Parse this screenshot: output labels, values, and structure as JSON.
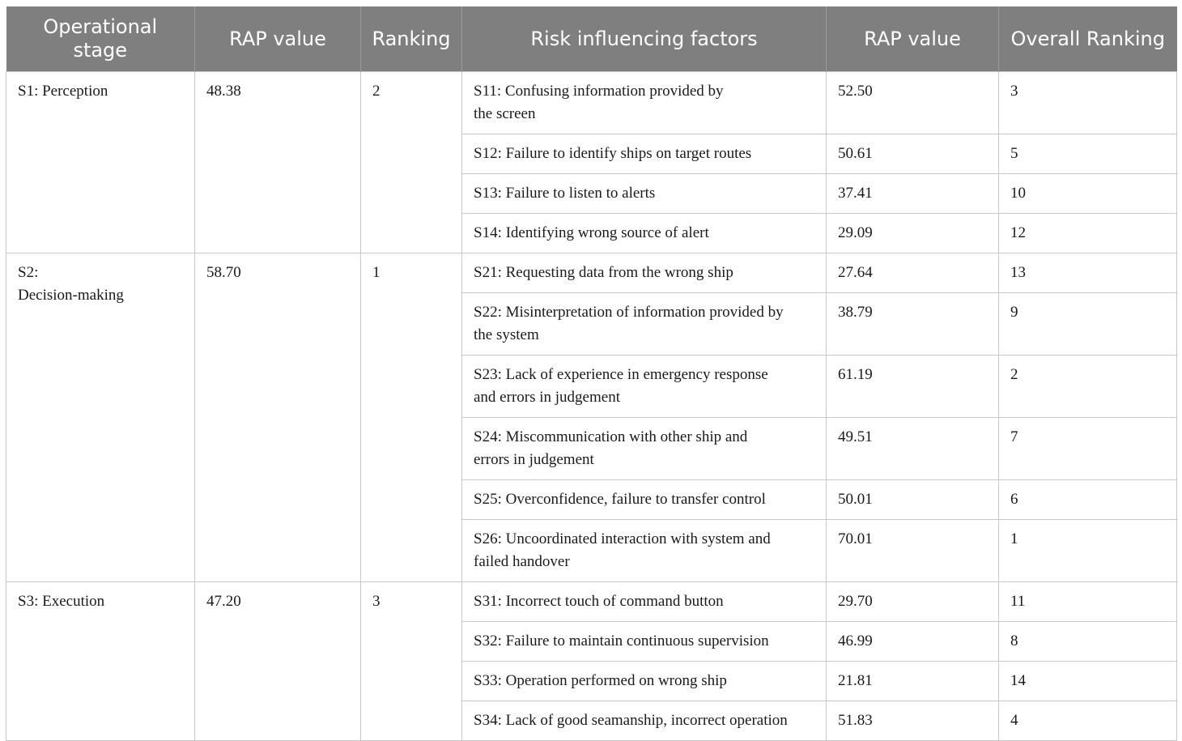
{
  "headers": [
    "Operational stage",
    "RAP value",
    "Ranking",
    "Risk influencing factors",
    "RAP value",
    "Overall Ranking"
  ],
  "header_lines": {
    "stage_line1": "Operational",
    "stage_line2": "stage"
  },
  "stages": [
    {
      "stage_line1": "S1: Perception",
      "stage_line2": "",
      "rap": "48.38",
      "ranking": "2",
      "factors": [
        {
          "line1": "S11: Confusing information provided by",
          "line2": "the screen",
          "rap": "52.50",
          "overall": "3"
        },
        {
          "line1": "S12: Failure to identify ships on target routes",
          "line2": "",
          "rap": "50.61",
          "overall": "5"
        },
        {
          "line1": "S13: Failure to listen to alerts",
          "line2": "",
          "rap": "37.41",
          "overall": "10"
        },
        {
          "line1": "S14: Identifying wrong source of alert",
          "line2": "",
          "rap": "29.09",
          "overall": "12"
        }
      ]
    },
    {
      "stage_line1": "S2:",
      "stage_line2": "Decision-making",
      "rap": "58.70",
      "ranking": "1",
      "factors": [
        {
          "line1": "S21: Requesting data from the wrong ship",
          "line2": "",
          "rap": "27.64",
          "overall": "13"
        },
        {
          "line1": "S22: Misinterpretation of information provided by",
          "line2": "the system",
          "rap": "38.79",
          "overall": "9"
        },
        {
          "line1": "S23: Lack of experience in emergency response",
          "line2": "and errors in judgement",
          "rap": "61.19",
          "overall": "2"
        },
        {
          "line1": "S24: Miscommunication with other ship and",
          "line2": "errors in judgement",
          "rap": "49.51",
          "overall": "7"
        },
        {
          "line1": "S25: Overconfidence, failure to transfer control",
          "line2": "",
          "rap": "50.01",
          "overall": "6"
        },
        {
          "line1": "S26: Uncoordinated interaction with system and",
          "line2": "failed handover",
          "rap": "70.01",
          "overall": "1"
        }
      ]
    },
    {
      "stage_line1": "S3: Execution",
      "stage_line2": "",
      "rap": "47.20",
      "ranking": "3",
      "factors": [
        {
          "line1": "S31: Incorrect touch of command button",
          "line2": "",
          "rap": "29.70",
          "overall": "11"
        },
        {
          "line1": "S32: Failure to maintain continuous supervision",
          "line2": "",
          "rap": "46.99",
          "overall": "8"
        },
        {
          "line1": "S33: Operation performed on wrong ship",
          "line2": "",
          "rap": "21.81",
          "overall": "14"
        },
        {
          "line1": "S34: Lack of good seamanship, incorrect operation",
          "line2": "",
          "rap": "51.83",
          "overall": "4"
        }
      ]
    }
  ]
}
